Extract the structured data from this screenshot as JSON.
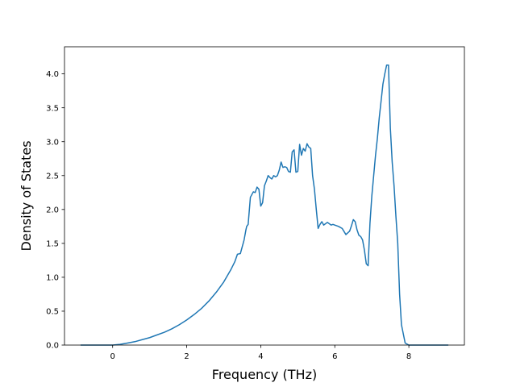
{
  "chart_data": {
    "type": "line",
    "title": "",
    "xlabel": "Frequency (THz)",
    "ylabel": "Density of States",
    "xlim": [
      -1.3,
      9.5
    ],
    "ylim": [
      0,
      4.4
    ],
    "xticks": [
      0,
      2,
      4,
      6,
      8
    ],
    "yticks": [
      0.0,
      0.5,
      1.0,
      1.5,
      2.0,
      2.5,
      3.0,
      3.5,
      4.0
    ],
    "xtick_labels": [
      "0",
      "2",
      "4",
      "6",
      "8"
    ],
    "ytick_labels": [
      "0.0",
      "0.5",
      "1.0",
      "1.5",
      "2.0",
      "2.5",
      "3.0",
      "3.5",
      "4.0"
    ],
    "grid": false,
    "legend": "none",
    "line_color": "#1f77b4",
    "series": [
      {
        "x": [
          -0.85,
          -0.5,
          -0.2,
          0.0,
          0.2,
          0.4,
          0.6,
          0.8,
          1.0,
          1.2,
          1.4,
          1.6,
          1.8,
          2.0,
          2.2,
          2.4,
          2.6,
          2.8,
          3.0,
          3.2,
          3.3,
          3.37,
          3.45,
          3.5,
          3.55,
          3.6,
          3.62,
          3.66,
          3.72,
          3.8,
          3.85,
          3.9,
          3.95,
          4.0,
          4.05,
          4.1,
          4.15,
          4.2,
          4.25,
          4.3,
          4.35,
          4.4,
          4.45,
          4.5,
          4.55,
          4.6,
          4.65,
          4.7,
          4.75,
          4.8,
          4.85,
          4.9,
          4.95,
          5.0,
          5.05,
          5.1,
          5.15,
          5.2,
          5.25,
          5.3,
          5.35,
          5.4,
          5.45,
          5.5,
          5.55,
          5.6,
          5.65,
          5.7,
          5.8,
          5.9,
          5.95,
          6.0,
          6.1,
          6.2,
          6.3,
          6.4,
          6.45,
          6.5,
          6.55,
          6.6,
          6.65,
          6.7,
          6.75,
          6.8,
          6.85,
          6.9,
          6.95,
          7.0,
          7.05,
          7.1,
          7.15,
          7.2,
          7.25,
          7.3,
          7.35,
          7.4,
          7.45,
          7.5,
          7.55,
          7.6,
          7.65,
          7.7,
          7.75,
          7.8,
          7.9,
          8.0,
          8.1,
          8.15,
          8.25,
          8.4,
          8.6,
          9.05
        ],
        "y": [
          0.0,
          0.0,
          0.0,
          0.0,
          0.01,
          0.03,
          0.05,
          0.08,
          0.11,
          0.15,
          0.19,
          0.24,
          0.3,
          0.37,
          0.45,
          0.54,
          0.65,
          0.78,
          0.93,
          1.12,
          1.23,
          1.34,
          1.35,
          1.45,
          1.55,
          1.7,
          1.75,
          1.78,
          2.18,
          2.26,
          2.25,
          2.33,
          2.3,
          2.05,
          2.1,
          2.35,
          2.42,
          2.5,
          2.47,
          2.45,
          2.5,
          2.48,
          2.5,
          2.58,
          2.7,
          2.62,
          2.63,
          2.62,
          2.56,
          2.55,
          2.85,
          2.88,
          2.55,
          2.56,
          2.96,
          2.8,
          2.9,
          2.86,
          2.97,
          2.92,
          2.9,
          2.5,
          2.3,
          2.0,
          1.72,
          1.78,
          1.82,
          1.77,
          1.81,
          1.77,
          1.78,
          1.77,
          1.75,
          1.72,
          1.63,
          1.68,
          1.76,
          1.85,
          1.82,
          1.7,
          1.62,
          1.6,
          1.55,
          1.4,
          1.2,
          1.17,
          1.8,
          2.2,
          2.5,
          2.8,
          3.05,
          3.35,
          3.6,
          3.85,
          4.0,
          4.13,
          4.13,
          3.2,
          2.7,
          2.35,
          1.9,
          1.5,
          0.75,
          0.3,
          0.03,
          0.0,
          0.0,
          0.0,
          0.0,
          0.0,
          0.0,
          0.0
        ]
      }
    ]
  }
}
